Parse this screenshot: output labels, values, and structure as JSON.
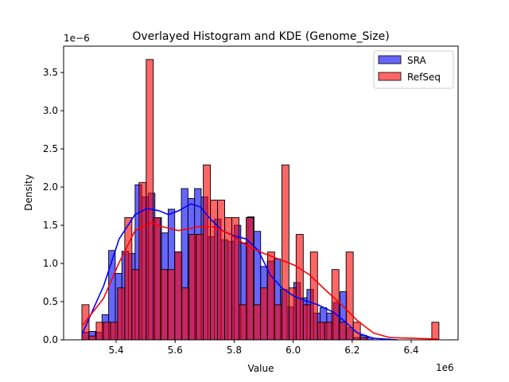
{
  "chart_data": {
    "type": "histogram+kde",
    "title": "Overlayed Histogram and KDE (Genome_Size)",
    "xlabel": "Value",
    "ylabel": "Density",
    "x_offset_label": "1e6",
    "y_offset_label": "1e−6",
    "xlim": [
      5.222,
      6.559
    ],
    "ylim": [
      0,
      3.845
    ],
    "x_ticks": [
      "5.4",
      "5.6",
      "5.8",
      "6.0",
      "6.2",
      "6.4"
    ],
    "y_ticks": [
      "0.0",
      "0.5",
      "1.0",
      "1.5",
      "2.0",
      "2.5",
      "3.0",
      "3.5"
    ],
    "grid": false,
    "legend_position": "top-right",
    "series": [
      {
        "name": "SRA",
        "color": "#0000ff",
        "bin_start": 5.285,
        "bin_width": 0.0224,
        "values": [
          0.1,
          0.11,
          0.1,
          0.33,
          1.17,
          0.87,
          1.16,
          1.13,
          2.03,
          1.87,
          1.92,
          1.6,
          1.4,
          1.71,
          1.15,
          1.98,
          1.85,
          1.98,
          1.87,
          1.35,
          1.58,
          1.31,
          1.29,
          1.5,
          1.27,
          1.61,
          1.42,
          0.96,
          1.03,
          1.06,
          0.66,
          0.43,
          0.75,
          0.55,
          0.66,
          0.35,
          0.42,
          0.35,
          0.49,
          0.63,
          0.16,
          0.03,
          0.06,
          0.03
        ],
        "kde": {
          "x": [
            5.284,
            5.357,
            5.41,
            5.464,
            5.505,
            5.545,
            5.577,
            5.612,
            5.653,
            5.685,
            5.72,
            5.76,
            5.801,
            5.841,
            5.882,
            5.922,
            5.962,
            6.003,
            6.043,
            6.083,
            6.137,
            6.178,
            6.218,
            6.272,
            6.353
          ],
          "y": [
            0.07,
            0.7,
            1.32,
            1.64,
            1.72,
            1.69,
            1.64,
            1.69,
            1.78,
            1.74,
            1.58,
            1.43,
            1.36,
            1.32,
            1.17,
            0.85,
            0.68,
            0.57,
            0.51,
            0.46,
            0.36,
            0.23,
            0.09,
            0.02,
            0.0
          ]
        }
      },
      {
        "name": "RefSeq",
        "color": "#ff0000",
        "bin_start": 5.284,
        "bin_width": 0.0242,
        "values": [
          0.46,
          0.05,
          0.23,
          0.23,
          0.23,
          0.68,
          1.6,
          0.92,
          2.06,
          3.67,
          1.6,
          0.92,
          0.92,
          1.15,
          0.68,
          1.38,
          1.38,
          2.29,
          1.83,
          1.83,
          1.6,
          1.6,
          0.46,
          1.6,
          0.46,
          0.68,
          1.15,
          0.46,
          2.29,
          0.68,
          1.38,
          0.46,
          1.15,
          0.23,
          0.23,
          0.92,
          0.23,
          1.15,
          0.23,
          0.03,
          0,
          0,
          0,
          0,
          0,
          0,
          0,
          0,
          0,
          0.23
        ],
        "kde": {
          "x": [
            5.284,
            5.357,
            5.41,
            5.464,
            5.518,
            5.558,
            5.612,
            5.68,
            5.733,
            5.787,
            5.841,
            5.895,
            5.949,
            6.003,
            6.056,
            6.11,
            6.164,
            6.218,
            6.272,
            6.326,
            6.406,
            6.495
          ],
          "y": [
            0.18,
            0.54,
            1.01,
            1.43,
            1.53,
            1.48,
            1.43,
            1.48,
            1.48,
            1.38,
            1.24,
            1.14,
            1.06,
            0.98,
            0.85,
            0.65,
            0.46,
            0.25,
            0.09,
            0.03,
            0.02,
            0.01
          ]
        }
      }
    ]
  }
}
